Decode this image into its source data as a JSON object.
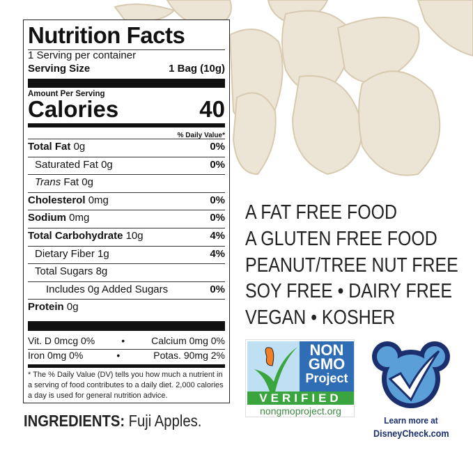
{
  "label": {
    "title": "Nutrition Facts",
    "servings": "1 Serving per container",
    "serving_size_label": "Serving Size",
    "serving_size_value": "1 Bag (10g)",
    "amount_per_serving": "Amount Per Serving",
    "calories_label": "Calories",
    "calories_value": "40",
    "dv_header": "% Daily Value*",
    "nutrients": [
      {
        "name": "Total Fat",
        "amount": "0g",
        "dv": "0%"
      },
      {
        "name": "Saturated Fat",
        "amount": "0g",
        "dv": "0%"
      },
      {
        "name": "Trans",
        "amount": "Fat 0g",
        "dv": ""
      },
      {
        "name": "Cholesterol",
        "amount": "0mg",
        "dv": "0%"
      },
      {
        "name": "Sodium",
        "amount": "0mg",
        "dv": "0%"
      },
      {
        "name": "Total Carbohydrate",
        "amount": "10g",
        "dv": "4%"
      },
      {
        "name": "Dietary Fiber",
        "amount": "1g",
        "dv": "4%"
      },
      {
        "name": "Total Sugars",
        "amount": "8g",
        "dv": ""
      },
      {
        "name": "Includes 0g Added Sugars",
        "amount": "",
        "dv": "0%"
      },
      {
        "name": "Protein",
        "amount": "0g",
        "dv": ""
      }
    ],
    "vitd": "Vit. D 0mcg 0%",
    "calcium": "Calcium 0mg 0%",
    "iron": "Iron 0mg 0%",
    "potas": "Potas. 90mg 2%",
    "bullet": "•",
    "footnote": "* The % Daily Value (DV) tells you how much a nutrient in a serving of food contributes to a daily diet. 2,000 calories a day is used for general nutrition advice."
  },
  "claims": [
    "A FAT FREE FOOD",
    "A GLUTEN FREE FOOD",
    "PEANUT/TREE NUT FREE",
    "SOY FREE • DAIRY FREE",
    "VEGAN • KOSHER"
  ],
  "ingredients": {
    "label": "INGREDIENTS:",
    "value": "Fuji Apples."
  },
  "nongmo": {
    "line1": "NON",
    "line2": "GMO",
    "line3": "Project",
    "verified": "VERIFIED",
    "url": "nongmoproject.org"
  },
  "disney": {
    "line1": "Learn more at",
    "line2": "DisneyCheck.com"
  },
  "colors": {
    "nongmo_blue": "#2f6db5",
    "nongmo_green": "#3aa43e",
    "disney_navy": "#1b2f6e",
    "disney_blue": "#5b9fd8"
  }
}
